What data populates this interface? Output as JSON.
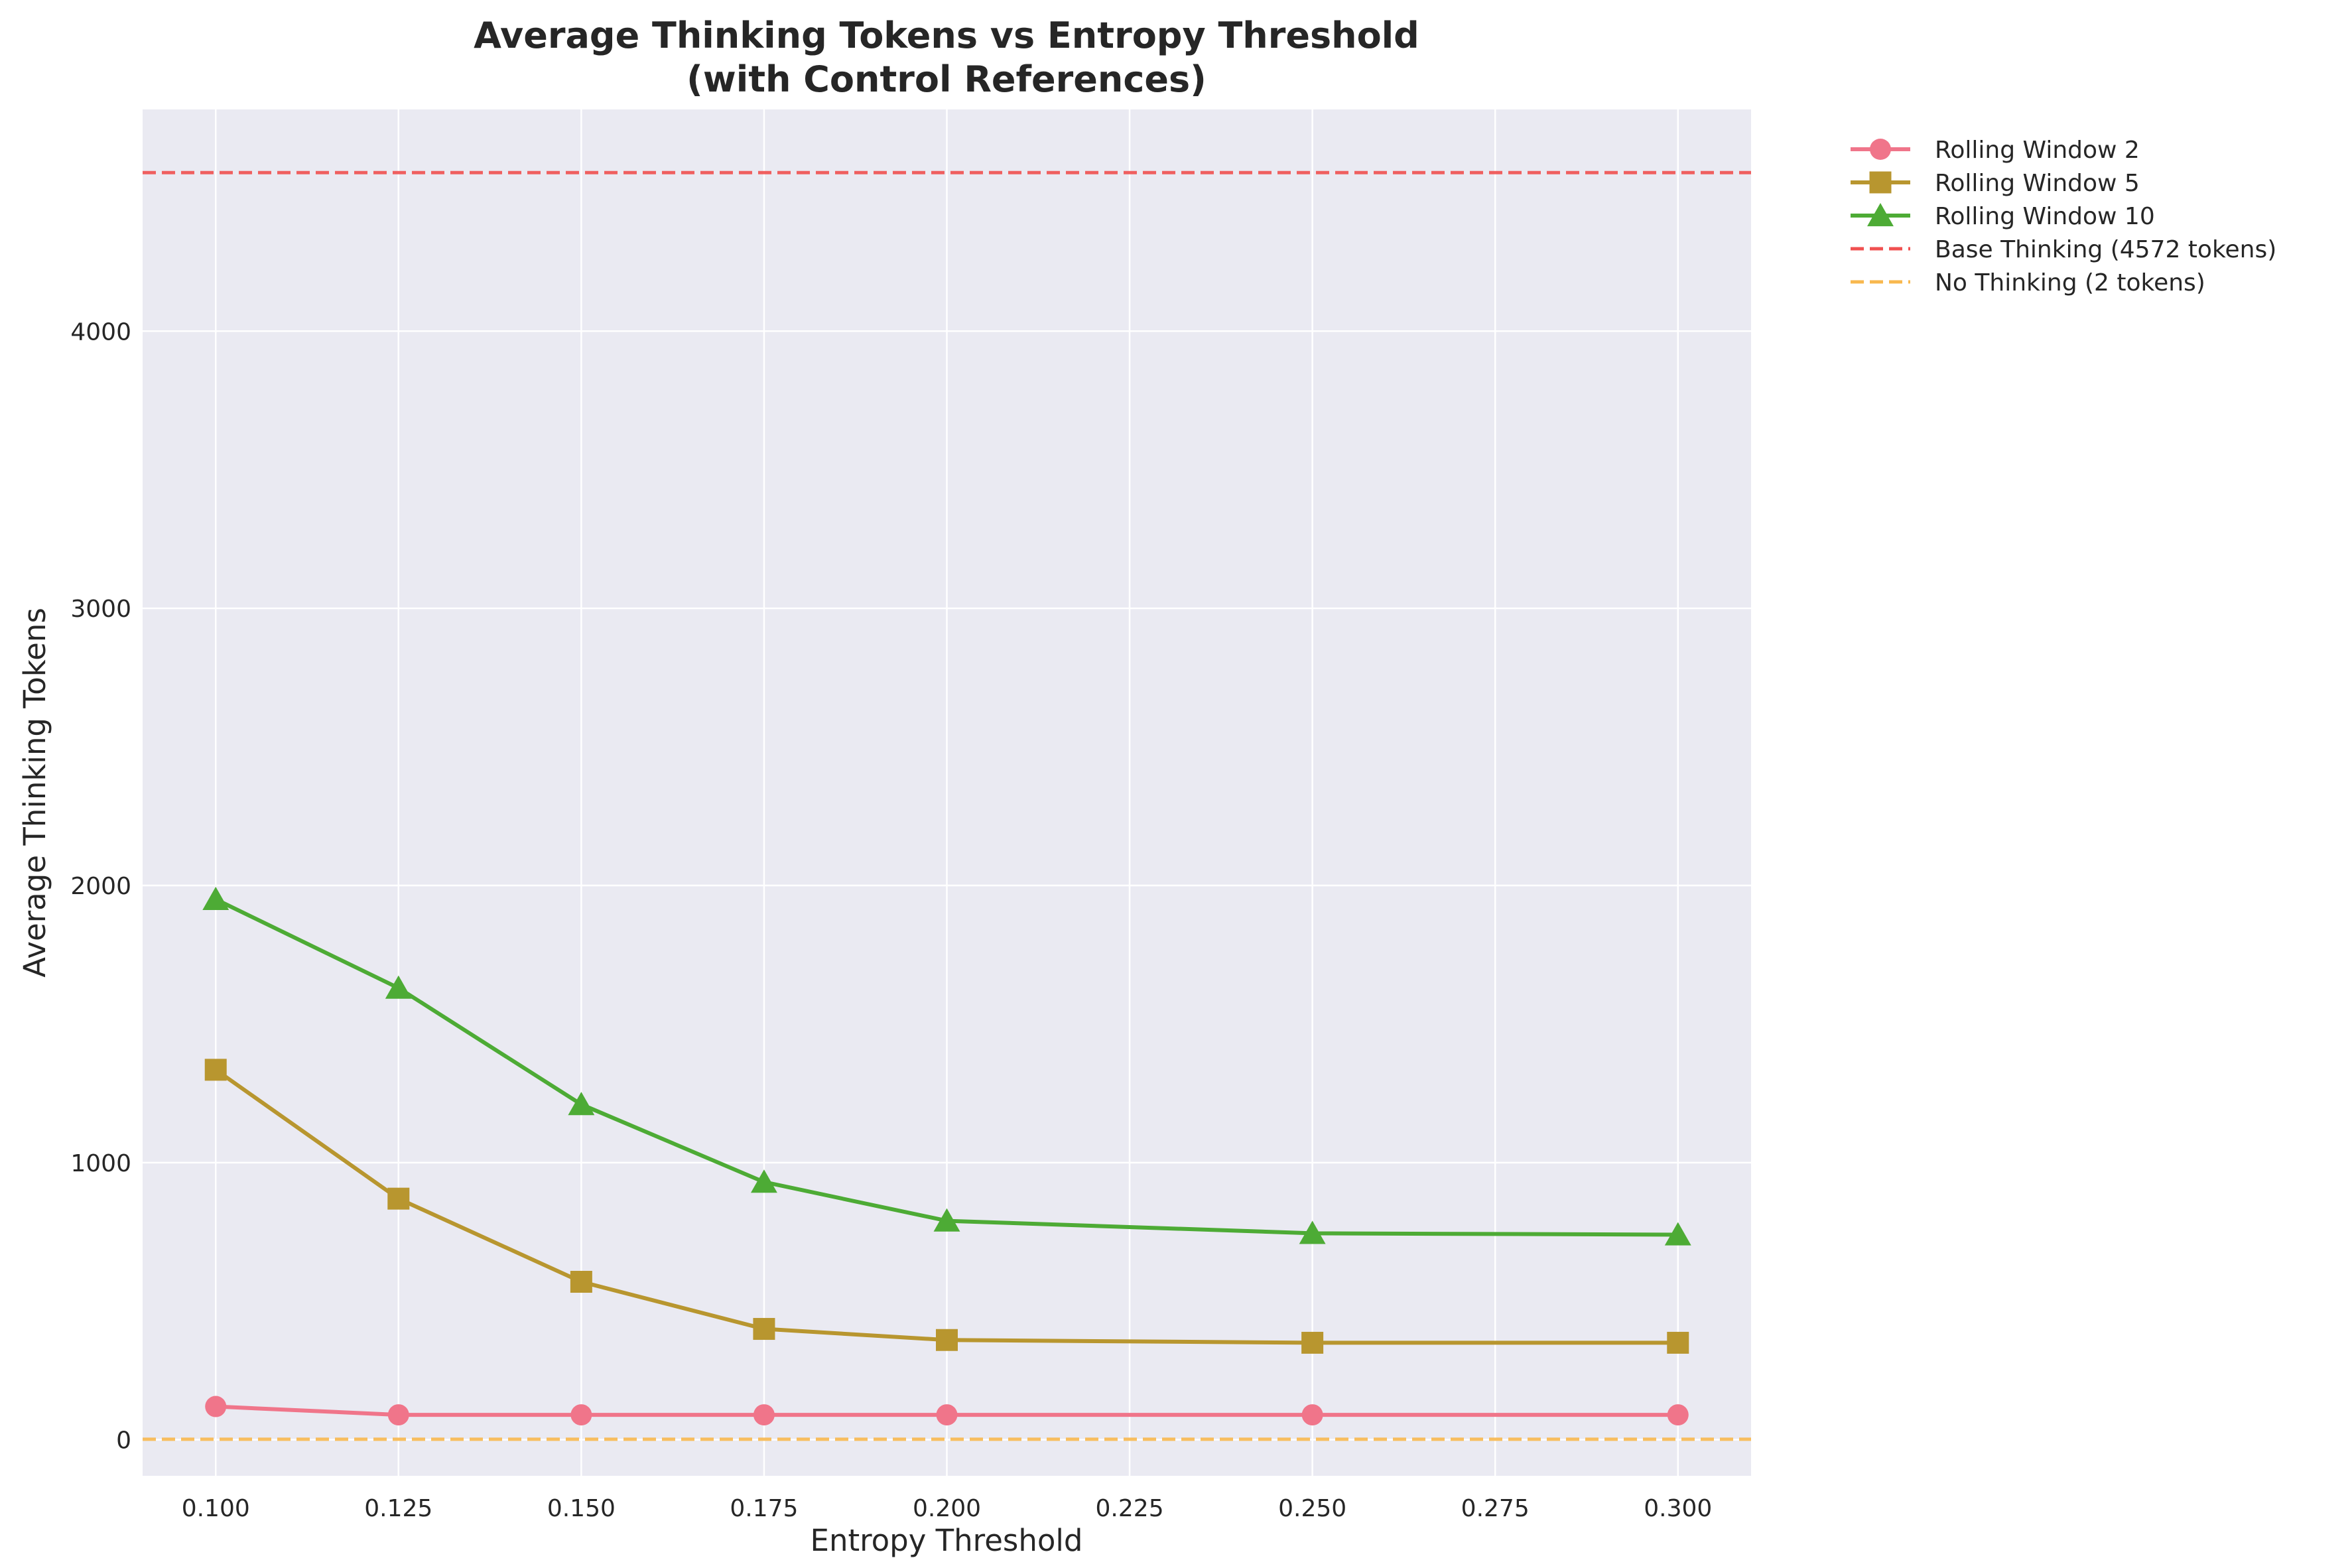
{
  "chart_data": {
    "type": "line",
    "title": "Average Thinking Tokens vs Entropy Threshold",
    "subtitle": "(with Control References)",
    "xlabel": "Entropy Threshold",
    "ylabel": "Average Thinking Tokens",
    "xlim": [
      0.09,
      0.31
    ],
    "ylim": [
      -130,
      4800
    ],
    "x_ticks": [
      0.1,
      0.125,
      0.15,
      0.175,
      0.2,
      0.225,
      0.25,
      0.275,
      0.3
    ],
    "x_tick_labels": [
      "0.100",
      "0.125",
      "0.150",
      "0.175",
      "0.200",
      "0.225",
      "0.250",
      "0.275",
      "0.300"
    ],
    "y_ticks": [
      0,
      1000,
      2000,
      3000,
      4000
    ],
    "y_tick_labels": [
      "0",
      "1000",
      "2000",
      "3000",
      "4000"
    ],
    "grid": true,
    "legend_position": "outside-top-right",
    "x": [
      0.1,
      0.125,
      0.15,
      0.175,
      0.2,
      0.25,
      0.3
    ],
    "series": [
      {
        "name": "Rolling Window 2",
        "color": "#f0758a",
        "marker": "circle",
        "values": [
          120,
          90,
          90,
          90,
          90,
          90,
          90
        ]
      },
      {
        "name": "Rolling Window 5",
        "color": "#b8962f",
        "marker": "square",
        "values": [
          1335,
          870,
          570,
          400,
          360,
          350,
          350
        ]
      },
      {
        "name": "Rolling Window 10",
        "color": "#4dab35",
        "marker": "triangle",
        "values": [
          1950,
          1630,
          1210,
          930,
          790,
          745,
          740
        ]
      }
    ],
    "reference_lines": [
      {
        "name": "Base Thinking (4572 tokens)",
        "value": 4572,
        "color": "#f05050"
      },
      {
        "name": "No Thinking (2 tokens)",
        "value": 2,
        "color": "#f8b84e"
      }
    ]
  }
}
